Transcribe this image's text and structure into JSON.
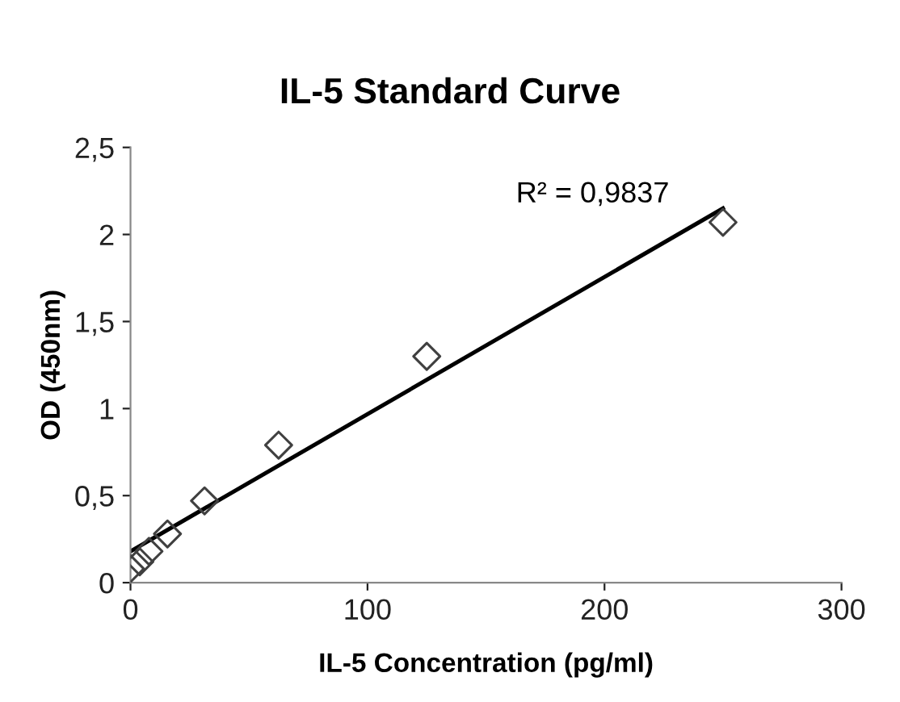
{
  "chart_data": {
    "type": "scatter",
    "title": "IL-5 Standard Curve",
    "xlabel": "IL-5 Concentration (pg/ml)",
    "ylabel": "OD (450nm)",
    "x": [
      0,
      3.9,
      7.8,
      15.6,
      31.25,
      62.5,
      125,
      250
    ],
    "series": [
      {
        "color": "#404040",
        "marker": "diamond",
        "values": [
          0.08,
          0.12,
          0.18,
          0.28,
          0.47,
          0.79,
          1.3,
          2.07
        ]
      },
      {
        "type": "line",
        "color": "#000000",
        "x": [
          0,
          250
        ],
        "values": [
          0.18,
          2.15
        ],
        "line_style": "solid",
        "marker": "none"
      }
    ],
    "annotations": [
      "R² = 0,9837"
    ],
    "xlim": [
      0,
      300
    ],
    "xticks": [
      0,
      100,
      200,
      300
    ],
    "ylim": [
      0,
      2.5
    ],
    "yticks": [
      {
        "value": 0,
        "label": "0"
      },
      {
        "value": 0.5,
        "label": "0,5"
      },
      {
        "value": 1,
        "label": "1"
      },
      {
        "value": 1.5,
        "label": "1,5"
      },
      {
        "value": 2,
        "label": "2"
      },
      {
        "value": 2.5,
        "label": "2,5"
      }
    ],
    "grid": false,
    "legend": false
  }
}
